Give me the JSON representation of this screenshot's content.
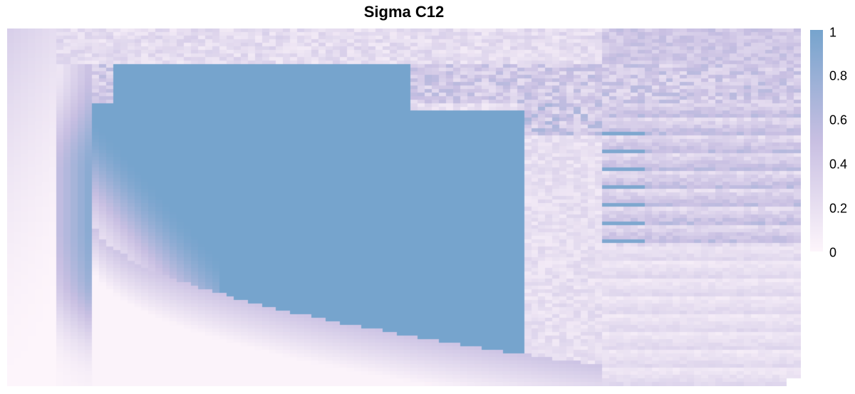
{
  "chart_data": {
    "type": "heatmap",
    "title": "Sigma C12",
    "xlabel": "",
    "ylabel": "",
    "value_range": [
      0,
      1
    ],
    "colorscale": [
      {
        "value": 0,
        "color": "#fdf5fb"
      },
      {
        "value": 0.5,
        "color": "#c8bfe2"
      },
      {
        "value": 1,
        "color": "#76a4cd"
      }
    ],
    "legend": {
      "position": "right",
      "ticks": [
        "1",
        "0.8",
        "0.6",
        "0.4",
        "0.2",
        "0"
      ]
    },
    "column_groups": [
      {
        "columns": 12,
        "pattern": "left-gradient"
      },
      {
        "columns": 20,
        "pattern": "block-top"
      },
      {
        "columns": 30,
        "pattern": "block-mixed"
      },
      {
        "columns": 10,
        "pattern": "block-mixed"
      },
      {
        "columns": 8,
        "pattern": "block-mixed"
      },
      {
        "columns": 10,
        "pattern": "block-right"
      },
      {
        "columns": 8,
        "pattern": "block-right"
      },
      {
        "columns": 8,
        "pattern": "block-right"
      }
    ]
  }
}
